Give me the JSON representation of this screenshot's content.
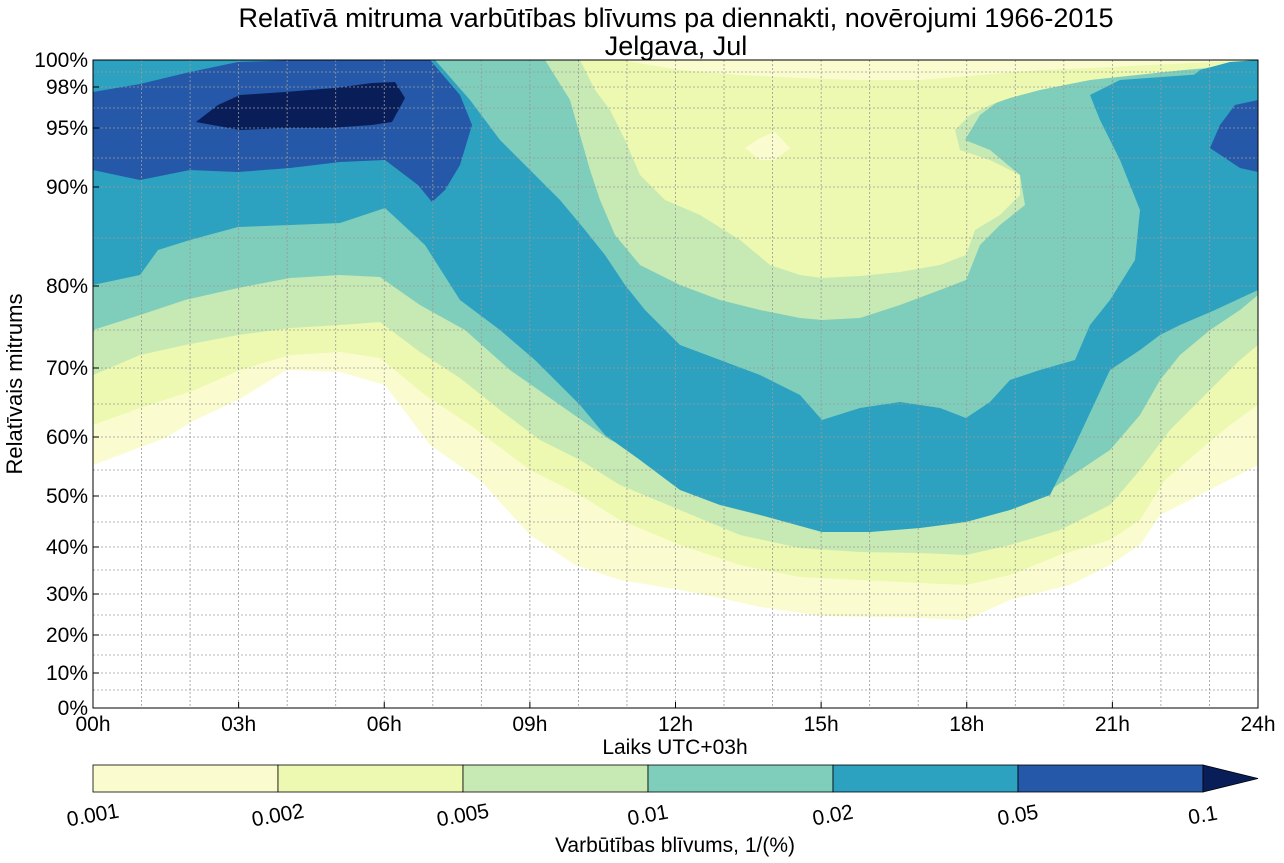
{
  "chart_data": {
    "type": "contour",
    "title": "Relatīvā mitruma varbūtības blīvums pa diennakti, novērojumi 1966-2015",
    "subtitle": "Jelgava, Jul",
    "xlabel": "Laiks UTC+03h",
    "ylabel": "Relatīvais mitrums",
    "x_ticks": [
      "00h",
      "03h",
      "06h",
      "09h",
      "12h",
      "15h",
      "18h",
      "21h",
      "24h"
    ],
    "x_range_hours": [
      0,
      24
    ],
    "y_ticks": [
      "0%",
      "10%",
      "20%",
      "30%",
      "40%",
      "50%",
      "60%",
      "70%",
      "80%",
      "90%",
      "95%",
      "98%",
      "100%"
    ],
    "y_scale": "nonlinear (expanded near 100%)",
    "grid": true,
    "colorbar": {
      "label": "Varbūtības blīvums, 1/(%)",
      "ticks": [
        "0.001",
        "0.002",
        "0.005",
        "0.01",
        "0.02",
        "0.05",
        "0.1"
      ],
      "levels": [
        0.001,
        0.002,
        0.005,
        0.01,
        0.02,
        0.05,
        0.1
      ],
      "colors": [
        "#fafcd0",
        "#edf8b1",
        "#c7e9b4",
        "#7fcdbb",
        "#2ca1c0",
        "#2558a8",
        "#091d58"
      ],
      "extend": "max"
    },
    "contours": [
      {
        "level": 0.001,
        "upper": [
          [
            0,
            98
          ],
          [
            24,
            100
          ]
        ],
        "lower": [
          [
            0,
            55
          ],
          [
            1,
            57
          ],
          [
            2,
            60
          ],
          [
            3,
            63
          ],
          [
            4,
            69
          ],
          [
            5,
            68
          ],
          [
            7,
            55
          ],
          [
            9,
            42
          ],
          [
            11,
            35
          ],
          [
            13,
            29
          ],
          [
            15,
            24
          ],
          [
            18,
            23
          ],
          [
            21,
            38
          ],
          [
            22,
            42
          ],
          [
            23,
            49
          ],
          [
            24,
            55
          ]
        ]
      },
      {
        "level": 0.002,
        "upper": [
          [
            0,
            98
          ],
          [
            6,
            100
          ],
          [
            10,
            100
          ],
          [
            13,
            99
          ],
          [
            17,
            98
          ],
          [
            21,
            99
          ],
          [
            24,
            100
          ]
        ],
        "lower": [
          [
            0,
            61
          ],
          [
            2,
            67
          ],
          [
            4,
            72
          ],
          [
            6,
            72
          ],
          [
            8,
            60
          ],
          [
            10,
            50
          ],
          [
            12,
            40
          ],
          [
            15,
            32
          ],
          [
            18,
            31
          ],
          [
            21,
            42
          ],
          [
            23,
            53
          ],
          [
            24,
            62
          ]
        ]
      },
      {
        "level": 0.005,
        "upper": [
          [
            0,
            98
          ],
          [
            8,
            99
          ],
          [
            10,
            98
          ],
          [
            12,
            96
          ],
          [
            15,
            96
          ],
          [
            18,
            97
          ],
          [
            21,
            98
          ],
          [
            24,
            100
          ]
        ],
        "lower": [
          [
            0,
            70
          ],
          [
            2,
            74
          ],
          [
            4,
            76
          ],
          [
            6,
            76
          ],
          [
            8,
            70
          ],
          [
            10,
            60
          ],
          [
            12,
            51
          ],
          [
            15,
            44
          ],
          [
            18,
            44
          ],
          [
            20,
            48
          ],
          [
            22,
            57
          ],
          [
            24,
            68
          ]
        ]
      },
      {
        "level": 0.01,
        "upper": [
          [
            0,
            99
          ],
          [
            8,
            100
          ],
          [
            10,
            96
          ],
          [
            11,
            92
          ],
          [
            13,
            85
          ],
          [
            15,
            82
          ],
          [
            17,
            82
          ],
          [
            18,
            84
          ],
          [
            19,
            92
          ],
          [
            20,
            95
          ],
          [
            22,
            96
          ],
          [
            24,
            99
          ]
        ],
        "lower": [
          [
            0,
            75
          ],
          [
            2,
            78
          ],
          [
            4,
            80
          ],
          [
            6,
            80
          ],
          [
            8,
            76
          ],
          [
            10,
            68
          ],
          [
            12,
            61
          ],
          [
            15,
            52
          ],
          [
            18,
            52
          ],
          [
            20,
            58
          ],
          [
            22,
            64
          ],
          [
            24,
            72
          ]
        ]
      },
      {
        "level": 0.02,
        "upper": [
          [
            0,
            99
          ],
          [
            7,
            100
          ],
          [
            9,
            97
          ],
          [
            10,
            91
          ],
          [
            11,
            82
          ],
          [
            12,
            76
          ],
          [
            15,
            72
          ],
          [
            17,
            73
          ],
          [
            18,
            71
          ],
          [
            20,
            77
          ],
          [
            21,
            82
          ],
          [
            21.5,
            90
          ],
          [
            22,
            95
          ],
          [
            24,
            98
          ]
        ],
        "lower": [
          [
            0,
            80
          ],
          [
            2,
            83
          ],
          [
            4,
            85
          ],
          [
            6,
            86
          ],
          [
            8,
            80
          ],
          [
            10,
            71
          ],
          [
            12,
            64
          ],
          [
            15,
            57
          ],
          [
            18,
            58
          ],
          [
            20,
            62
          ],
          [
            22,
            70
          ],
          [
            24,
            80
          ]
        ]
      },
      {
        "level": 0.05,
        "upper": [
          [
            0,
            98
          ],
          [
            3,
            99
          ],
          [
            6,
            99
          ],
          [
            7,
            99
          ],
          [
            7.5,
            96
          ],
          [
            8,
            93
          ],
          [
            8.5,
            91
          ],
          [
            8.8,
            88
          ],
          [
            9,
            86
          ]
        ],
        "lower": [
          [
            0,
            91
          ],
          [
            1,
            90
          ],
          [
            2,
            91
          ],
          [
            4,
            92
          ],
          [
            6,
            93
          ],
          [
            7,
            90
          ],
          [
            7.5,
            88
          ],
          [
            8,
            90
          ],
          [
            8.5,
            92
          ],
          [
            9,
            95
          ],
          [
            9,
            97
          ]
        ]
      },
      {
        "level": 0.1,
        "upper": [
          [
            2,
            96
          ],
          [
            3,
            98
          ],
          [
            4,
            98
          ],
          [
            5,
            98.5
          ],
          [
            6,
            98
          ]
        ],
        "lower": [
          [
            2,
            96
          ],
          [
            4,
            95
          ],
          [
            6,
            95
          ]
        ]
      }
    ]
  }
}
